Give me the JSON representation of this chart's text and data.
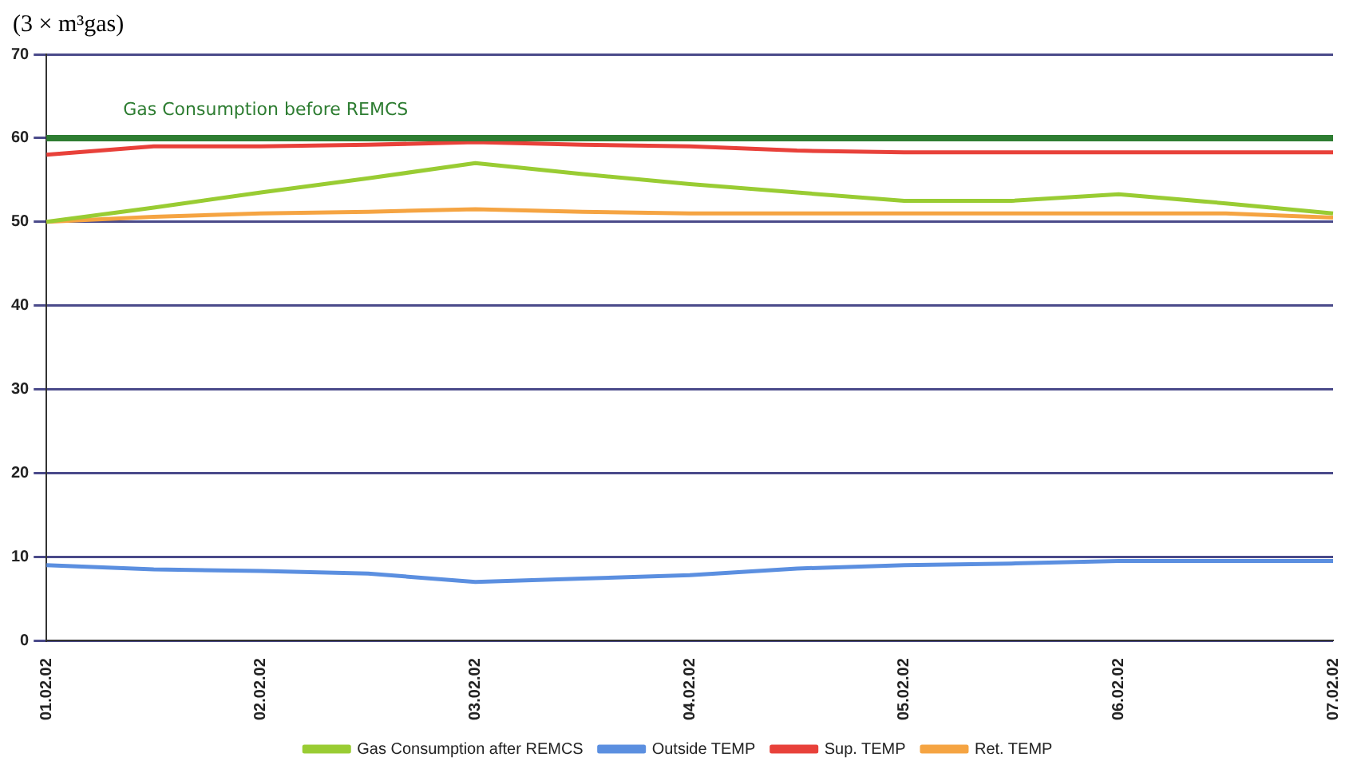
{
  "chart_data": {
    "type": "line",
    "ylabel": "(3 × m³gas)",
    "categories": [
      "01.02.02",
      null,
      "02.02.02",
      null,
      "03.02.02",
      null,
      "04.02.02",
      null,
      "05.02.02",
      null,
      "06.02.02",
      null,
      "07.02.02"
    ],
    "ylim": [
      0,
      70
    ],
    "yticks": [
      0,
      10,
      20,
      30,
      40,
      50,
      60,
      70
    ],
    "grid": "y",
    "legend": "bottom",
    "marker": "none",
    "line_style": "solid",
    "series": [
      {
        "name": "Gas Consumption after REMCS",
        "color": "#99cc33",
        "values": [
          50,
          51.7,
          53.5,
          55.2,
          57,
          55.7,
          54.5,
          53.5,
          52.5,
          52.5,
          53.3,
          52.2,
          51
        ]
      },
      {
        "name": "Outside TEMP",
        "color": "#5b8fe0",
        "values": [
          9,
          8.5,
          8.3,
          8,
          7,
          7.4,
          7.8,
          8.6,
          9,
          9.2,
          9.5,
          9.5,
          9.5
        ]
      },
      {
        "name": "Sup. TEMP",
        "color": "#e8413a",
        "values": [
          58,
          59,
          59,
          59.2,
          59.5,
          59.2,
          59,
          58.5,
          58.3,
          58.3,
          58.3,
          58.3,
          58.3
        ]
      },
      {
        "name": "Ret. TEMP",
        "color": "#f5a442",
        "values": [
          50,
          50.6,
          51,
          51.2,
          51.5,
          51.2,
          51,
          51,
          51,
          51,
          51,
          51,
          50.5
        ]
      }
    ],
    "ref_lines": [
      {
        "axis": "y",
        "value": 60,
        "label": "Gas Consumption before REMCS",
        "color": "#2e7d32"
      }
    ]
  }
}
